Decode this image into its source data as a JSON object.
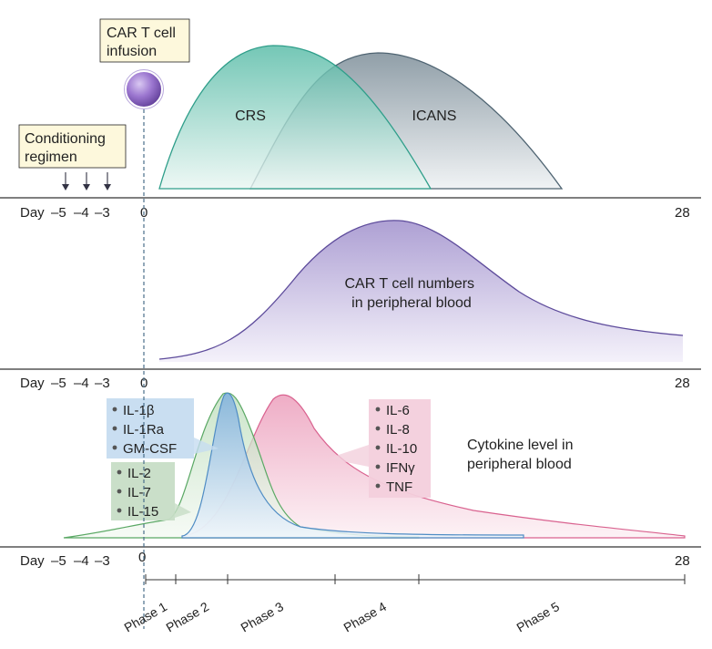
{
  "labels": {
    "car_t_infusion": [
      "CAR T cell",
      "infusion"
    ],
    "conditioning": [
      "Conditioning",
      "regimen"
    ],
    "crs": "CRS",
    "icans": "ICANS",
    "car_t_numbers": [
      "CAR T cell numbers",
      "in peripheral blood"
    ],
    "cytokine_level": [
      "Cytokine level in",
      "peripheral blood"
    ]
  },
  "day_axis": {
    "day_prefix": "Day",
    "neg5": "–5",
    "neg4": "–4",
    "neg3": "–3",
    "zero": "0",
    "end": "28"
  },
  "cytokine_boxes": {
    "blue": [
      "IL-1β",
      "IL-1Ra",
      "GM-CSF"
    ],
    "green": [
      "IL-2",
      "IL-7",
      "IL-15"
    ],
    "pink": [
      "IL-6",
      "IL-8",
      "IL-10",
      "IFNγ",
      "TNF"
    ]
  },
  "phases": [
    "Phase 1",
    "Phase 2",
    "Phase 3",
    "Phase 4",
    "Phase 5"
  ],
  "colors": {
    "crs": "#6fc7b5",
    "icans": "#93a3ad",
    "car_t_curve": "#b6abd6",
    "blue_curve": "#9cc1e3",
    "green_curve": "#cfe6cf",
    "pink_curve": "#f2b8cc",
    "cell": "#8f6bc6",
    "label_box": "#fdf8dc"
  }
}
